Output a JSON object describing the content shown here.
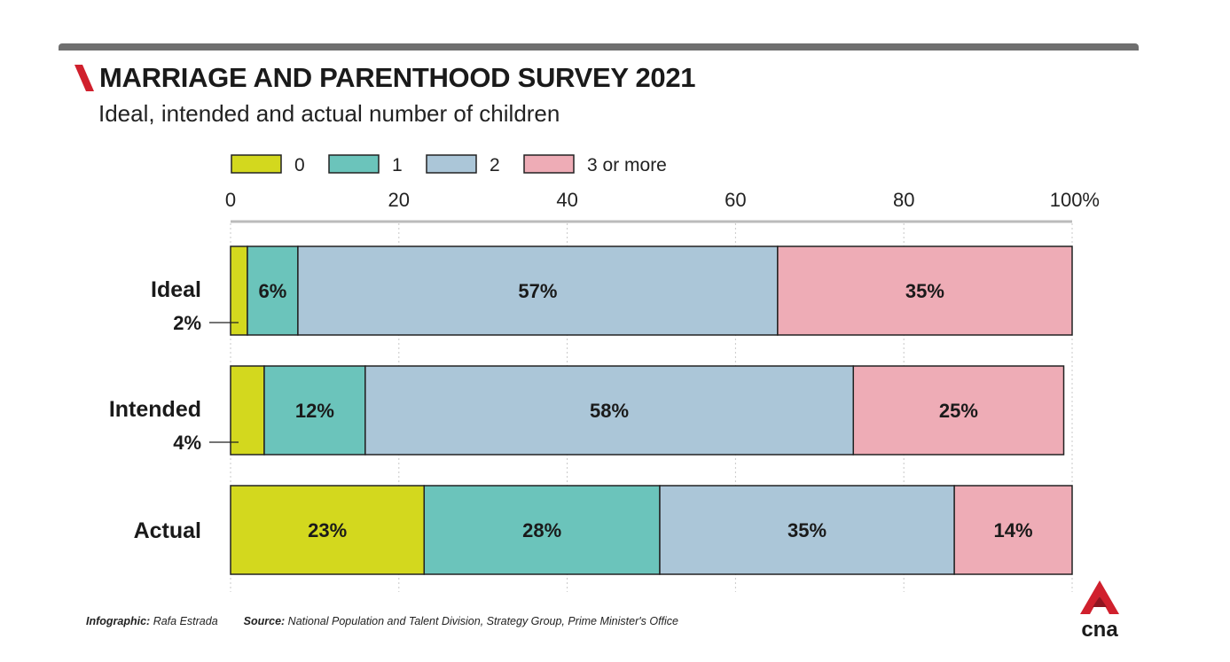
{
  "header": {
    "title": "MARRIAGE AND PARENTHOOD SURVEY 2021",
    "subtitle": "Ideal, intended and actual number of children"
  },
  "footer": {
    "infographic_label": "Infographic:",
    "infographic_name": "Rafa Estrada",
    "source_label": "Source:",
    "source_text": "National Population and Talent Division, Strategy Group, Prime Minister's Office"
  },
  "logo": {
    "text": "cna",
    "icon": "cna-logo-icon",
    "color": "#d0202d"
  },
  "colors": {
    "accent": "#d0202d"
  },
  "chart_data": {
    "type": "bar",
    "orientation": "horizontal",
    "stacked": true,
    "title": "MARRIAGE AND PARENTHOOD SURVEY 2021",
    "subtitle": "Ideal, intended and actual number of children",
    "categories": [
      "Ideal",
      "Intended",
      "Actual"
    ],
    "series": [
      {
        "name": "0",
        "color": "#d3d81e",
        "values": [
          2,
          4,
          23
        ],
        "labels": [
          "2%",
          "4%",
          "23%"
        ]
      },
      {
        "name": "1",
        "color": "#6bc4bb",
        "values": [
          6,
          12,
          28
        ],
        "labels": [
          "6%",
          "12%",
          "28%"
        ]
      },
      {
        "name": "2",
        "color": "#abc6d8",
        "values": [
          57,
          58,
          35
        ],
        "labels": [
          "57%",
          "58%",
          "35%"
        ]
      },
      {
        "name": "3 or more",
        "color": "#eeacb6",
        "values": [
          35,
          25,
          14
        ],
        "labels": [
          "35%",
          "25%",
          "14%"
        ]
      }
    ],
    "xlim": [
      0,
      100
    ],
    "xticks": [
      {
        "value": 0,
        "label": "0"
      },
      {
        "value": 20,
        "label": "20"
      },
      {
        "value": 40,
        "label": "40"
      },
      {
        "value": 60,
        "label": "60"
      },
      {
        "value": 80,
        "label": "80"
      },
      {
        "value": 100,
        "label": "100%"
      }
    ],
    "grid": true,
    "legend_position": "top"
  }
}
